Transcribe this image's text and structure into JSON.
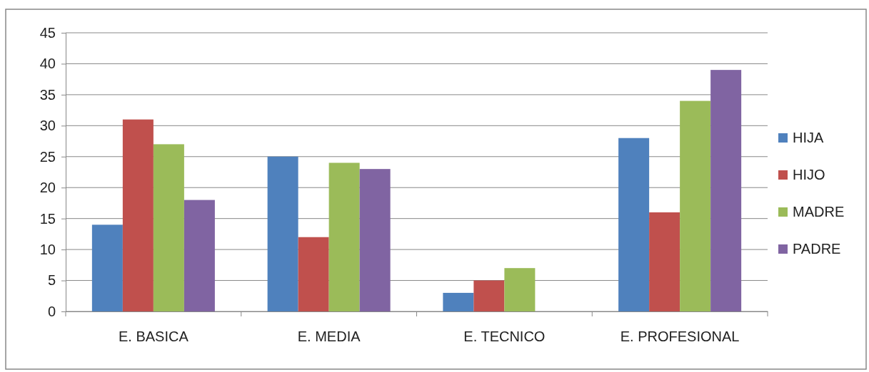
{
  "chart_data": {
    "type": "bar",
    "categories": [
      "E. BASICA",
      "E. MEDIA",
      "E. TECNICO",
      "E. PROFESIONAL"
    ],
    "series": [
      {
        "name": "HIJA",
        "color": "#4f81bd",
        "values": [
          14,
          25,
          3,
          28
        ]
      },
      {
        "name": "HIJO",
        "color": "#c0504d",
        "values": [
          31,
          12,
          5,
          16
        ]
      },
      {
        "name": "MADRE",
        "color": "#9bbb59",
        "values": [
          27,
          24,
          7,
          34
        ]
      },
      {
        "name": "PADRE",
        "color": "#8064a2",
        "values": [
          18,
          23,
          null,
          39
        ]
      }
    ],
    "ylim": [
      0,
      45
    ],
    "yticks": [
      0,
      5,
      10,
      15,
      20,
      25,
      30,
      35,
      40,
      45
    ],
    "grid": "y",
    "legend": "right"
  }
}
